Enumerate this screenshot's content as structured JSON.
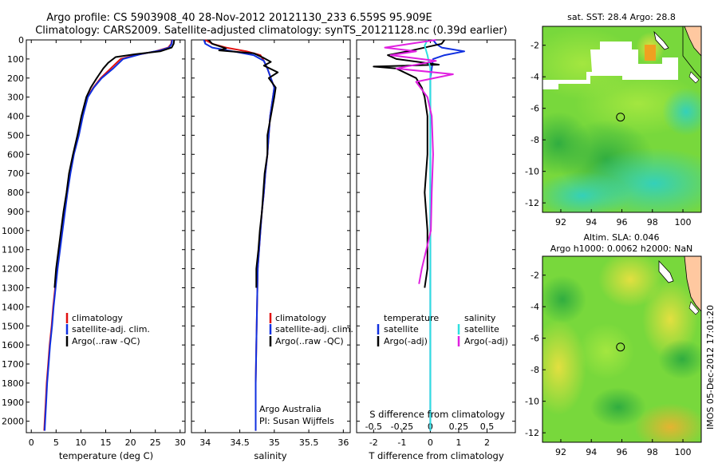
{
  "title": {
    "line1": "Argo profile: CS 5903908_40 28-Nov-2012 20121130_233 6.559S 95.909E",
    "line2": "Climatology: CARS2009. Satellite-adjusted climatology: synTS_20121128.nc (0.39d earlier)"
  },
  "footer_vertical": "IMOS 05-Dec-2012 17:01:20",
  "colors": {
    "climatology": "#e01010",
    "satellite_adj": "#1030e0",
    "argo": "#000000",
    "salinity_sat": "#30e0e0",
    "salinity_argo": "#e020e0",
    "map_green": "#78d83c",
    "map_cyan": "#40d8b0",
    "land": "#ffc8a0"
  },
  "chart_data": [
    {
      "type": "line",
      "id": "temperature",
      "xlabel": "temperature (deg C)",
      "ylabel": "",
      "xlim": [
        -1,
        31
      ],
      "ylim": [
        2060,
        0
      ],
      "xticks": [
        0,
        5,
        10,
        15,
        20,
        25,
        30
      ],
      "yticks": [
        0,
        100,
        200,
        300,
        400,
        500,
        600,
        700,
        800,
        900,
        1000,
        1100,
        1200,
        1300,
        1400,
        1500,
        1600,
        1700,
        1800,
        1900,
        2000
      ],
      "legend": [
        "climatology",
        "satellite-adj. clim.",
        "Argo(..raw -QC)"
      ],
      "legend_position": "lower-center",
      "series": [
        {
          "name": "climatology",
          "points": [
            [
              28.3,
              0
            ],
            [
              28.2,
              20
            ],
            [
              27.6,
              40
            ],
            [
              25,
              60
            ],
            [
              21,
              80
            ],
            [
              18,
              100
            ],
            [
              16,
              150
            ],
            [
              14,
              200
            ],
            [
              12.5,
              250
            ],
            [
              11.3,
              300
            ],
            [
              10.3,
              400
            ],
            [
              9.5,
              500
            ],
            [
              8.5,
              600
            ],
            [
              7.8,
              700
            ],
            [
              7.2,
              800
            ],
            [
              6.7,
              900
            ],
            [
              6.2,
              1000
            ],
            [
              5.7,
              1100
            ],
            [
              5.2,
              1200
            ],
            [
              4.8,
              1300
            ],
            [
              4.4,
              1400
            ],
            [
              4.1,
              1500
            ],
            [
              3.7,
              1600
            ],
            [
              3.4,
              1700
            ],
            [
              3.1,
              1800
            ],
            [
              2.9,
              1900
            ],
            [
              2.7,
              2000
            ],
            [
              2.6,
              2050
            ]
          ]
        },
        {
          "name": "satellite-adj. clim.",
          "points": [
            [
              28.4,
              0
            ],
            [
              28.3,
              20
            ],
            [
              27.8,
              40
            ],
            [
              26,
              55
            ],
            [
              22,
              75
            ],
            [
              18.5,
              100
            ],
            [
              16.5,
              150
            ],
            [
              14.2,
              200
            ],
            [
              12.6,
              250
            ],
            [
              11.4,
              300
            ],
            [
              10.4,
              400
            ],
            [
              9.6,
              500
            ],
            [
              8.6,
              600
            ],
            [
              7.9,
              700
            ],
            [
              7.3,
              800
            ],
            [
              6.8,
              900
            ],
            [
              6.3,
              1000
            ],
            [
              5.8,
              1100
            ],
            [
              5.3,
              1200
            ],
            [
              4.9,
              1300
            ],
            [
              4.5,
              1400
            ],
            [
              4.2,
              1500
            ],
            [
              3.8,
              1600
            ],
            [
              3.5,
              1700
            ],
            [
              3.2,
              1800
            ],
            [
              3.0,
              1900
            ],
            [
              2.8,
              2000
            ],
            [
              2.7,
              2050
            ]
          ]
        },
        {
          "name": "Argo(..raw -QC)",
          "points": [
            [
              28.8,
              0
            ],
            [
              28.7,
              20
            ],
            [
              28.3,
              40
            ],
            [
              26,
              60
            ],
            [
              21,
              75
            ],
            [
              17,
              90
            ],
            [
              15.5,
              120
            ],
            [
              14.5,
              150
            ],
            [
              13.2,
              200
            ],
            [
              12,
              250
            ],
            [
              11.1,
              300
            ],
            [
              10.1,
              400
            ],
            [
              9.3,
              500
            ],
            [
              8.4,
              600
            ],
            [
              7.6,
              700
            ],
            [
              7.1,
              800
            ],
            [
              6.5,
              900
            ],
            [
              6.0,
              1000
            ],
            [
              5.5,
              1100
            ],
            [
              5.0,
              1200
            ],
            [
              4.7,
              1300
            ]
          ]
        }
      ]
    },
    {
      "type": "line",
      "id": "salinity",
      "xlabel": "salinity",
      "ylabel": "",
      "xlim": [
        33.8,
        36.1
      ],
      "ylim": [
        2060,
        0
      ],
      "xticks": [
        34,
        34.5,
        35,
        35.5,
        36
      ],
      "yticks": [
        0,
        100,
        200,
        300,
        400,
        500,
        600,
        700,
        800,
        900,
        1000,
        1100,
        1200,
        1300,
        1400,
        1500,
        1600,
        1700,
        1800,
        1900,
        2000
      ],
      "legend": [
        "climatology",
        "satellite-adj. clim.",
        "Argo(..raw -QC)"
      ],
      "legend_position": "lower-right",
      "annotation": [
        "Argo Australia",
        "PI: Susan Wijffels"
      ],
      "series": [
        {
          "name": "climatology",
          "points": [
            [
              34.0,
              0
            ],
            [
              34.1,
              20
            ],
            [
              34.3,
              40
            ],
            [
              34.6,
              60
            ],
            [
              34.8,
              80
            ],
            [
              34.85,
              110
            ],
            [
              34.9,
              150
            ],
            [
              34.95,
              200
            ],
            [
              35.0,
              250
            ],
            [
              34.98,
              300
            ],
            [
              34.94,
              400
            ],
            [
              34.92,
              500
            ],
            [
              34.9,
              600
            ],
            [
              34.87,
              700
            ],
            [
              34.85,
              800
            ],
            [
              34.82,
              900
            ],
            [
              34.8,
              1000
            ],
            [
              34.78,
              1100
            ],
            [
              34.76,
              1200
            ],
            [
              34.75,
              1400
            ],
            [
              34.74,
              1600
            ],
            [
              34.73,
              1800
            ],
            [
              34.73,
              2050
            ]
          ]
        },
        {
          "name": "satellite-adj. clim.",
          "points": [
            [
              33.98,
              0
            ],
            [
              34.0,
              20
            ],
            [
              34.1,
              40
            ],
            [
              34.4,
              60
            ],
            [
              34.7,
              80
            ],
            [
              34.85,
              110
            ],
            [
              34.9,
              150
            ],
            [
              34.95,
              200
            ],
            [
              35.0,
              250
            ],
            [
              34.98,
              300
            ],
            [
              34.94,
              400
            ],
            [
              34.92,
              500
            ],
            [
              34.9,
              600
            ],
            [
              34.87,
              700
            ],
            [
              34.85,
              800
            ],
            [
              34.82,
              900
            ],
            [
              34.8,
              1000
            ],
            [
              34.78,
              1100
            ],
            [
              34.76,
              1200
            ],
            [
              34.75,
              1400
            ],
            [
              34.74,
              1600
            ],
            [
              34.73,
              1800
            ],
            [
              34.73,
              2050
            ]
          ]
        },
        {
          "name": "Argo(..raw -QC)",
          "points": [
            [
              34.05,
              0
            ],
            [
              34.1,
              20
            ],
            [
              34.3,
              45
            ],
            [
              34.2,
              55
            ],
            [
              34.7,
              70
            ],
            [
              34.85,
              95
            ],
            [
              34.95,
              115
            ],
            [
              34.85,
              135
            ],
            [
              35.05,
              170
            ],
            [
              34.92,
              200
            ],
            [
              35.02,
              250
            ],
            [
              35.0,
              300
            ],
            [
              34.95,
              400
            ],
            [
              34.9,
              500
            ],
            [
              34.9,
              600
            ],
            [
              34.86,
              700
            ],
            [
              34.84,
              800
            ],
            [
              34.82,
              900
            ],
            [
              34.79,
              1000
            ],
            [
              34.77,
              1100
            ],
            [
              34.74,
              1200
            ],
            [
              34.74,
              1300
            ]
          ]
        }
      ]
    },
    {
      "type": "line",
      "id": "difference",
      "xlabel": "T difference from climatology",
      "xlabel_top": "S difference from climatology",
      "ylabel": "",
      "xlim": [
        -2.6,
        3.0
      ],
      "ylim": [
        2060,
        0
      ],
      "xticks": [
        -2,
        -1,
        0,
        1,
        2
      ],
      "xticks_s": [
        -0.5,
        -0.25,
        0,
        0.25,
        0.5
      ],
      "legend": [
        "temperature",
        "satellite",
        "Argo(-adj)",
        "salinity",
        "satellite",
        "Argo(-adj)"
      ],
      "legend_position": "lower-center",
      "series": [
        {
          "name": "satellite",
          "points": [
            [
              0.1,
              0
            ],
            [
              0.2,
              20
            ],
            [
              0.4,
              40
            ],
            [
              1.2,
              60
            ],
            [
              0.5,
              80
            ],
            [
              0.1,
              100
            ],
            [
              0.0,
              200
            ],
            [
              0.0,
              2050
            ]
          ]
        },
        {
          "name": "Argo(-adj)",
          "points": [
            [
              0.5,
              0
            ],
            [
              0.4,
              20
            ],
            [
              -0.8,
              60
            ],
            [
              -1.5,
              80
            ],
            [
              -1.2,
              100
            ],
            [
              0.3,
              130
            ],
            [
              -2.0,
              140
            ],
            [
              -1.2,
              150
            ],
            [
              -0.5,
              200
            ],
            [
              -0.3,
              250
            ],
            [
              -0.2,
              300
            ],
            [
              -0.1,
              400
            ],
            [
              -0.1,
              600
            ],
            [
              -0.2,
              800
            ],
            [
              -0.1,
              1000
            ],
            [
              -0.1,
              1200
            ],
            [
              -0.2,
              1300
            ]
          ]
        },
        {
          "name": "satellite",
          "points": [
            [
              -0.1,
              0
            ],
            [
              -0.2,
              30
            ],
            [
              -0.1,
              80
            ],
            [
              0.0,
              150
            ],
            [
              0.0,
              2050
            ]
          ]
        },
        {
          "name": "Argo(-adj)",
          "points": [
            [
              0.2,
              0
            ],
            [
              -1.6,
              40
            ],
            [
              -0.5,
              60
            ],
            [
              -1.4,
              80
            ],
            [
              0.2,
              110
            ],
            [
              -1.2,
              150
            ],
            [
              0.8,
              180
            ],
            [
              -0.5,
              220
            ],
            [
              -0.1,
              300
            ],
            [
              0.05,
              400
            ],
            [
              0.1,
              600
            ],
            [
              0.05,
              800
            ],
            [
              0.02,
              1000
            ],
            [
              -0.3,
              1200
            ],
            [
              -0.4,
              1280
            ]
          ]
        }
      ]
    },
    {
      "type": "heatmap",
      "id": "sst_map",
      "title": "sat. SST: 28.4 Argo: 28.8",
      "xticks": [
        92,
        94,
        96,
        98,
        100
      ],
      "yticks": [
        -2,
        -4,
        -6,
        -8,
        -10,
        -12
      ],
      "xlim": [
        90.8,
        101.2
      ],
      "ylim": [
        -12.6,
        -0.8
      ],
      "marker": [
        95.909,
        -6.559
      ]
    },
    {
      "type": "heatmap",
      "id": "sla_map",
      "title": "Altim. SLA: 0.046",
      "subtitle": "Argo h1000: 0.0062 h2000: NaN",
      "xticks": [
        92,
        94,
        96,
        98,
        100
      ],
      "yticks": [
        -2,
        -4,
        -6,
        -8,
        -10,
        -12
      ],
      "xlim": [
        90.8,
        101.2
      ],
      "ylim": [
        -12.6,
        -0.8
      ],
      "marker": [
        95.909,
        -6.559
      ]
    }
  ]
}
